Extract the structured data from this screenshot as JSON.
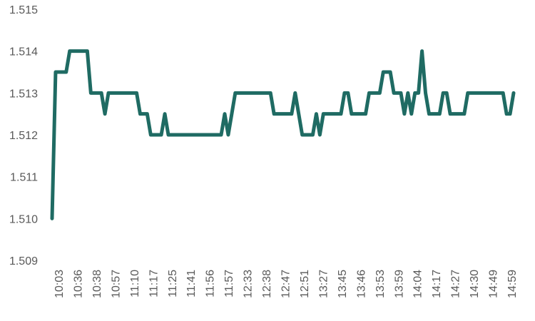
{
  "chart_data": {
    "type": "line",
    "title": "",
    "xlabel": "",
    "ylabel": "",
    "ylim": [
      1.509,
      1.515
    ],
    "yticks": [
      "1.509",
      "1.510",
      "1.511",
      "1.512",
      "1.513",
      "1.514",
      "1.515"
    ],
    "grid": false,
    "legend": "none",
    "line_color": "#1f6b63",
    "xticks": [
      "10:03",
      "10:36",
      "10:38",
      "10:57",
      "11:10",
      "11:17",
      "11:25",
      "11:41",
      "11:56",
      "11:57",
      "12:33",
      "12:38",
      "12:47",
      "12:51",
      "13:27",
      "13:45",
      "13:46",
      "13:53",
      "13:59",
      "14:04",
      "14:17",
      "14:27",
      "14:30",
      "14:49",
      "14:59"
    ],
    "series": [
      {
        "values": [
          1.51,
          1.5135,
          1.5135,
          1.5135,
          1.5135,
          1.514,
          1.514,
          1.514,
          1.514,
          1.514,
          1.514,
          1.513,
          1.513,
          1.513,
          1.513,
          1.5125,
          1.513,
          1.513,
          1.513,
          1.513,
          1.513,
          1.513,
          1.513,
          1.513,
          1.513,
          1.5125,
          1.5125,
          1.5125,
          1.512,
          1.512,
          1.512,
          1.512,
          1.5125,
          1.512,
          1.512,
          1.512,
          1.512,
          1.512,
          1.512,
          1.512,
          1.512,
          1.512,
          1.512,
          1.512,
          1.512,
          1.512,
          1.512,
          1.512,
          1.512,
          1.5125,
          1.512,
          1.5125,
          1.513,
          1.513,
          1.513,
          1.513,
          1.513,
          1.513,
          1.513,
          1.513,
          1.513,
          1.513,
          1.513,
          1.5125,
          1.5125,
          1.5125,
          1.5125,
          1.5125,
          1.5125,
          1.513,
          1.5125,
          1.512,
          1.512,
          1.512,
          1.512,
          1.5125,
          1.512,
          1.5125,
          1.5125,
          1.5125,
          1.5125,
          1.5125,
          1.5125,
          1.513,
          1.513,
          1.5125,
          1.5125,
          1.5125,
          1.5125,
          1.5125,
          1.513,
          1.513,
          1.513,
          1.513,
          1.5135,
          1.5135,
          1.5135,
          1.513,
          1.513,
          1.513,
          1.5125,
          1.513,
          1.5125,
          1.513,
          1.513,
          1.514,
          1.513,
          1.5125,
          1.5125,
          1.5125,
          1.5125,
          1.513,
          1.513,
          1.5125,
          1.5125,
          1.5125,
          1.5125,
          1.5125,
          1.513,
          1.513,
          1.513,
          1.513,
          1.513,
          1.513,
          1.513,
          1.513,
          1.513,
          1.513,
          1.513,
          1.5125,
          1.5125,
          1.513
        ]
      }
    ]
  }
}
